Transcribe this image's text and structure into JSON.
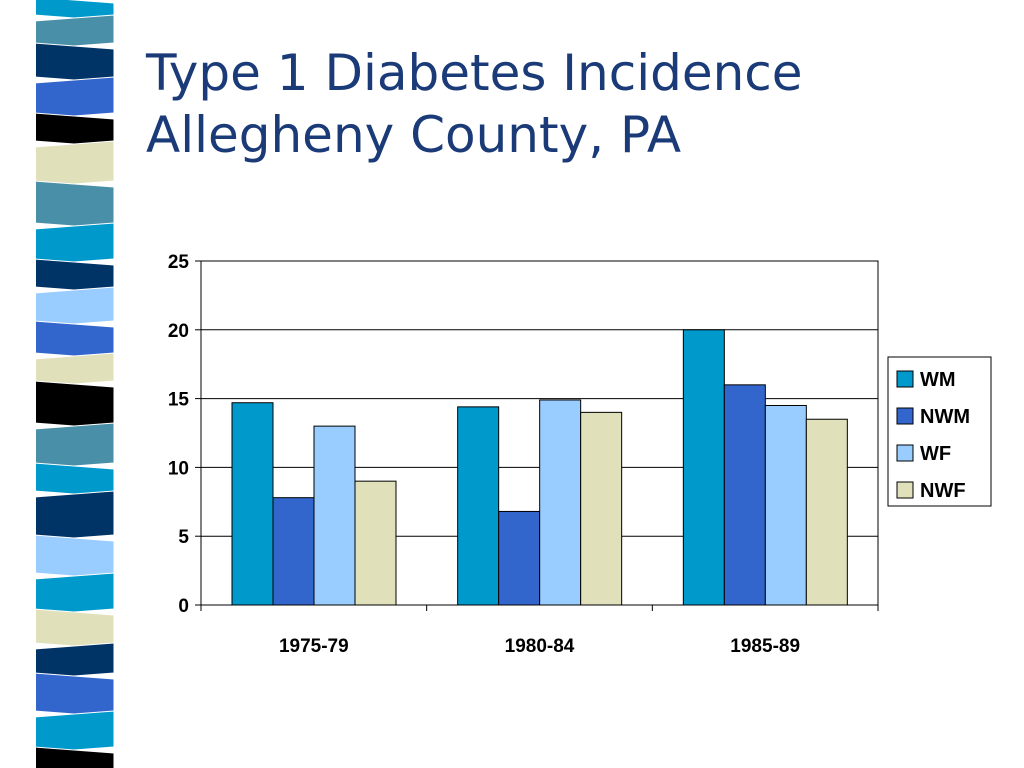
{
  "slide": {
    "title_lines": [
      "Type 1 Diabetes Incidence",
      "Allegheny County, PA"
    ]
  },
  "chart_data": {
    "type": "bar",
    "title": "",
    "xlabel": "",
    "ylabel": "",
    "categories": [
      "1975-79",
      "1980-84",
      "1985-89"
    ],
    "series": [
      {
        "name": "WM",
        "values": [
          14.7,
          14.4,
          20.0
        ],
        "color": "#0099cc"
      },
      {
        "name": "NWM",
        "values": [
          7.8,
          6.8,
          16.0
        ],
        "color": "#3366cc"
      },
      {
        "name": "WF",
        "values": [
          13.0,
          14.9,
          14.5
        ],
        "color": "#99ccff"
      },
      {
        "name": "NWF",
        "values": [
          9.0,
          14.0,
          13.5
        ],
        "color": "#e0e0bb"
      }
    ],
    "ylim": [
      0,
      25
    ],
    "yticks": [
      0,
      5,
      10,
      15,
      20,
      25
    ],
    "grid": true,
    "legend_position": "right"
  },
  "colors": {
    "title": "#1a3a78",
    "stripes": [
      "#0099cc",
      "#4a8fa8",
      "#003366",
      "#3366cc",
      "#000000",
      "#e0e0bb",
      "#99ccff"
    ]
  }
}
